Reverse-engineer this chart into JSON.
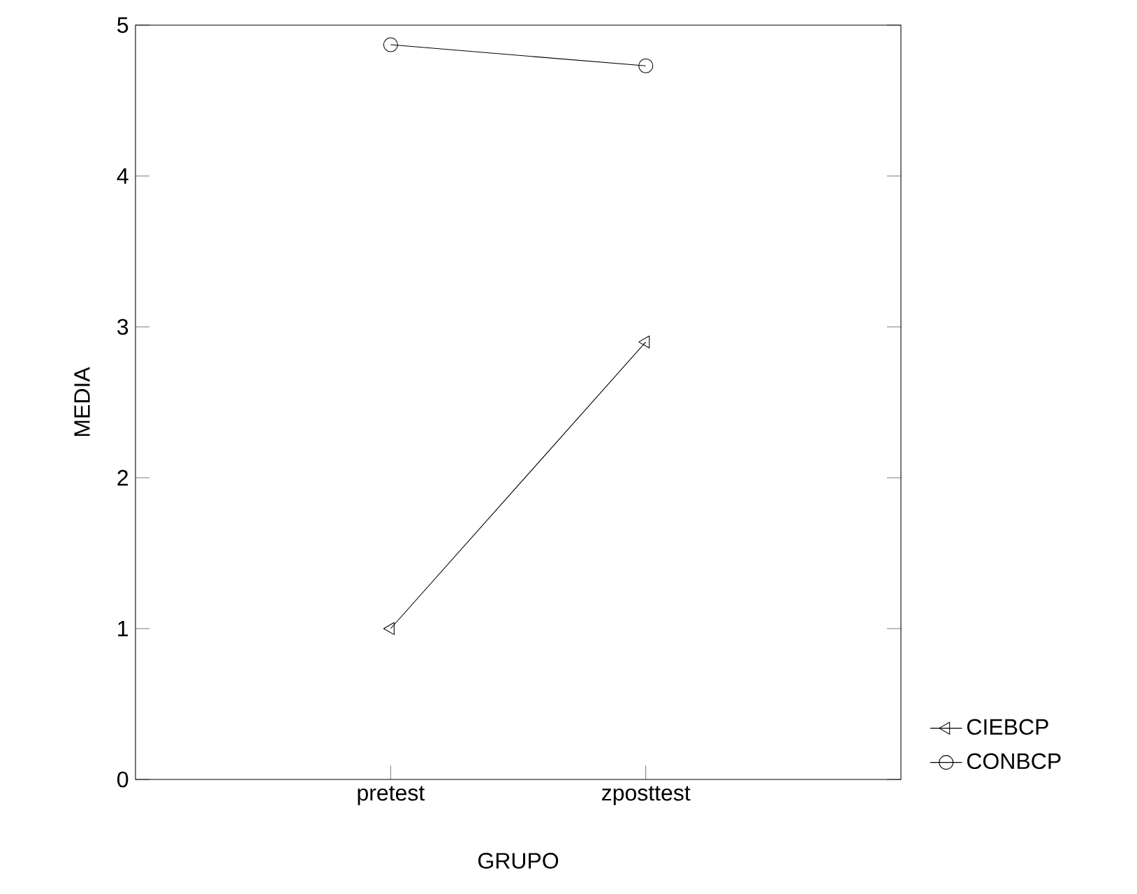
{
  "chart_data": {
    "type": "line",
    "xlabel": "GRUPO",
    "ylabel": "MEDIA",
    "categories": [
      "pretest",
      "zposttest"
    ],
    "series": [
      {
        "name": "CIEBCP",
        "color": "#000000",
        "marker": "triangle",
        "values": [
          1.0,
          2.9
        ]
      },
      {
        "name": "CONBCP",
        "color": "#000000",
        "marker": "circle",
        "values": [
          4.87,
          4.73
        ]
      }
    ],
    "ylim": [
      0,
      5
    ],
    "yticks": [
      0,
      1,
      2,
      3,
      4,
      5
    ],
    "grid": false,
    "legend": "bottom right"
  }
}
